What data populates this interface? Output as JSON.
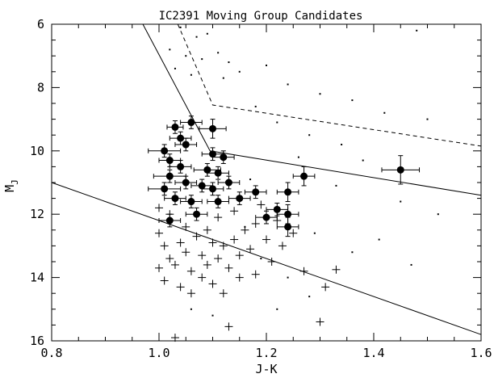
{
  "chart_data": {
    "type": "scatter",
    "title": "IC2391 Moving Group Candidates",
    "xlabel": "J-K",
    "ylabel": "M",
    "ylabel_sub": "J",
    "xlim": [
      0.8,
      1.6
    ],
    "ylim": [
      16,
      6
    ],
    "y_inverted": true,
    "x_ticks": [
      "0.8",
      "1.0",
      "1.2",
      "1.4",
      "1.6"
    ],
    "y_ticks": [
      "6",
      "8",
      "10",
      "12",
      "14",
      "16"
    ],
    "grid": false,
    "legend": "none",
    "series": [
      {
        "marker": "filled-circle-with-errorbars",
        "points": [
          {
            "x": 1.03,
            "y": 9.25,
            "xerr": 0.015,
            "yerr": 0.2
          },
          {
            "x": 1.06,
            "y": 9.1,
            "xerr": 0.02,
            "yerr": 0.2
          },
          {
            "x": 1.1,
            "y": 9.3,
            "xerr": 0.025,
            "yerr": 0.3
          },
          {
            "x": 1.04,
            "y": 9.6,
            "xerr": 0.02,
            "yerr": 0.2
          },
          {
            "x": 1.05,
            "y": 9.8,
            "xerr": 0.02,
            "yerr": 0.2
          },
          {
            "x": 1.01,
            "y": 10.0,
            "xerr": 0.03,
            "yerr": 0.2
          },
          {
            "x": 1.02,
            "y": 10.3,
            "xerr": 0.02,
            "yerr": 0.2
          },
          {
            "x": 1.04,
            "y": 10.5,
            "xerr": 0.02,
            "yerr": 0.2
          },
          {
            "x": 1.1,
            "y": 10.1,
            "xerr": 0.02,
            "yerr": 0.2
          },
          {
            "x": 1.12,
            "y": 10.2,
            "xerr": 0.02,
            "yerr": 0.2
          },
          {
            "x": 1.09,
            "y": 10.6,
            "xerr": 0.025,
            "yerr": 0.2
          },
          {
            "x": 1.11,
            "y": 10.7,
            "xerr": 0.02,
            "yerr": 0.2
          },
          {
            "x": 1.02,
            "y": 10.8,
            "xerr": 0.03,
            "yerr": 0.2
          },
          {
            "x": 1.05,
            "y": 11.0,
            "xerr": 0.02,
            "yerr": 0.2
          },
          {
            "x": 1.08,
            "y": 11.1,
            "xerr": 0.02,
            "yerr": 0.2
          },
          {
            "x": 1.1,
            "y": 11.2,
            "xerr": 0.02,
            "yerr": 0.2
          },
          {
            "x": 1.13,
            "y": 11.0,
            "xerr": 0.02,
            "yerr": 0.2
          },
          {
            "x": 1.18,
            "y": 11.3,
            "xerr": 0.02,
            "yerr": 0.2
          },
          {
            "x": 1.01,
            "y": 11.2,
            "xerr": 0.03,
            "yerr": 0.2
          },
          {
            "x": 1.03,
            "y": 11.5,
            "xerr": 0.02,
            "yerr": 0.2
          },
          {
            "x": 1.06,
            "y": 11.6,
            "xerr": 0.02,
            "yerr": 0.2
          },
          {
            "x": 1.11,
            "y": 11.6,
            "xerr": 0.02,
            "yerr": 0.2
          },
          {
            "x": 1.15,
            "y": 11.5,
            "xerr": 0.02,
            "yerr": 0.2
          },
          {
            "x": 1.2,
            "y": 12.1,
            "xerr": 0.02,
            "yerr": 0.2
          },
          {
            "x": 1.22,
            "y": 11.85,
            "xerr": 0.02,
            "yerr": 0.2
          },
          {
            "x": 1.24,
            "y": 11.3,
            "xerr": 0.02,
            "yerr": 0.3
          },
          {
            "x": 1.24,
            "y": 12.0,
            "xerr": 0.02,
            "yerr": 0.3
          },
          {
            "x": 1.24,
            "y": 12.4,
            "xerr": 0.02,
            "yerr": 0.3
          },
          {
            "x": 1.27,
            "y": 10.8,
            "xerr": 0.02,
            "yerr": 0.3
          },
          {
            "x": 1.45,
            "y": 10.6,
            "xerr": 0.035,
            "yerr": 0.45
          },
          {
            "x": 1.02,
            "y": 12.2,
            "xerr": 0.02,
            "yerr": 0.2
          },
          {
            "x": 1.07,
            "y": 12.0,
            "xerr": 0.02,
            "yerr": 0.2
          }
        ]
      },
      {
        "marker": "plus",
        "points": [
          {
            "x": 1.0,
            "y": 12.6
          },
          {
            "x": 1.01,
            "y": 13.0
          },
          {
            "x": 1.02,
            "y": 13.4
          },
          {
            "x": 1.0,
            "y": 13.7
          },
          {
            "x": 1.01,
            "y": 14.1
          },
          {
            "x": 1.03,
            "y": 13.6
          },
          {
            "x": 1.04,
            "y": 12.9
          },
          {
            "x": 1.04,
            "y": 14.3
          },
          {
            "x": 1.05,
            "y": 13.2
          },
          {
            "x": 1.06,
            "y": 13.8
          },
          {
            "x": 1.06,
            "y": 14.5
          },
          {
            "x": 1.07,
            "y": 12.7
          },
          {
            "x": 1.08,
            "y": 13.3
          },
          {
            "x": 1.08,
            "y": 14.0
          },
          {
            "x": 1.09,
            "y": 13.6
          },
          {
            "x": 1.1,
            "y": 12.9
          },
          {
            "x": 1.1,
            "y": 14.2
          },
          {
            "x": 1.11,
            "y": 13.4
          },
          {
            "x": 1.12,
            "y": 13.0
          },
          {
            "x": 1.12,
            "y": 14.5
          },
          {
            "x": 1.13,
            "y": 13.7
          },
          {
            "x": 1.14,
            "y": 12.8
          },
          {
            "x": 1.15,
            "y": 13.3
          },
          {
            "x": 1.15,
            "y": 14.0
          },
          {
            "x": 1.16,
            "y": 12.5
          },
          {
            "x": 1.17,
            "y": 13.1
          },
          {
            "x": 1.18,
            "y": 12.3
          },
          {
            "x": 1.18,
            "y": 13.9
          },
          {
            "x": 1.2,
            "y": 12.8
          },
          {
            "x": 1.21,
            "y": 13.5
          },
          {
            "x": 1.22,
            "y": 12.2
          },
          {
            "x": 1.23,
            "y": 13.0
          },
          {
            "x": 1.25,
            "y": 12.6
          },
          {
            "x": 1.27,
            "y": 13.8
          },
          {
            "x": 1.05,
            "y": 12.4
          },
          {
            "x": 1.02,
            "y": 12.0
          },
          {
            "x": 1.03,
            "y": 15.9
          },
          {
            "x": 1.13,
            "y": 15.55
          },
          {
            "x": 1.3,
            "y": 15.4
          },
          {
            "x": 1.31,
            "y": 14.3
          },
          {
            "x": 1.33,
            "y": 13.75
          },
          {
            "x": 1.0,
            "y": 11.8
          },
          {
            "x": 1.09,
            "y": 12.5
          },
          {
            "x": 1.11,
            "y": 12.1
          },
          {
            "x": 1.14,
            "y": 11.9
          },
          {
            "x": 1.19,
            "y": 11.7
          }
        ]
      },
      {
        "marker": "small-dot",
        "points": [
          {
            "x": 1.04,
            "y": 6.1
          },
          {
            "x": 1.07,
            "y": 6.4
          },
          {
            "x": 1.09,
            "y": 6.3
          },
          {
            "x": 1.02,
            "y": 6.8
          },
          {
            "x": 1.05,
            "y": 7.0
          },
          {
            "x": 1.08,
            "y": 7.1
          },
          {
            "x": 1.11,
            "y": 6.9
          },
          {
            "x": 1.13,
            "y": 7.2
          },
          {
            "x": 1.03,
            "y": 7.4
          },
          {
            "x": 1.06,
            "y": 7.6
          },
          {
            "x": 1.12,
            "y": 7.7
          },
          {
            "x": 1.15,
            "y": 7.5
          },
          {
            "x": 1.2,
            "y": 7.3
          },
          {
            "x": 1.24,
            "y": 7.9
          },
          {
            "x": 1.3,
            "y": 8.2
          },
          {
            "x": 1.36,
            "y": 8.4
          },
          {
            "x": 1.42,
            "y": 8.8
          },
          {
            "x": 1.5,
            "y": 9.0
          },
          {
            "x": 1.48,
            "y": 6.2
          },
          {
            "x": 1.18,
            "y": 8.6
          },
          {
            "x": 1.22,
            "y": 9.1
          },
          {
            "x": 1.28,
            "y": 9.5
          },
          {
            "x": 1.34,
            "y": 9.8
          },
          {
            "x": 1.38,
            "y": 10.3
          },
          {
            "x": 1.45,
            "y": 11.6
          },
          {
            "x": 1.52,
            "y": 12.0
          },
          {
            "x": 1.41,
            "y": 12.8
          },
          {
            "x": 1.36,
            "y": 13.2
          },
          {
            "x": 1.47,
            "y": 13.6
          },
          {
            "x": 1.29,
            "y": 12.6
          },
          {
            "x": 1.33,
            "y": 11.1
          },
          {
            "x": 1.26,
            "y": 10.2
          },
          {
            "x": 1.17,
            "y": 10.9
          },
          {
            "x": 1.16,
            "y": 12.4
          },
          {
            "x": 1.19,
            "y": 13.4
          },
          {
            "x": 1.24,
            "y": 14.0
          },
          {
            "x": 1.28,
            "y": 14.6
          },
          {
            "x": 1.22,
            "y": 15.0
          },
          {
            "x": 1.1,
            "y": 15.2
          },
          {
            "x": 1.06,
            "y": 15.0
          }
        ]
      }
    ],
    "lines": [
      {
        "style": "solid",
        "points": [
          [
            0.8,
            11.0
          ],
          [
            1.6,
            15.8
          ]
        ]
      },
      {
        "style": "solid",
        "points": [
          [
            0.97,
            6.0
          ],
          [
            1.095,
            10.0
          ],
          [
            1.6,
            11.4
          ]
        ]
      },
      {
        "style": "dashed",
        "points": [
          [
            1.035,
            6.0
          ],
          [
            1.1,
            8.55
          ],
          [
            1.6,
            9.85
          ]
        ]
      }
    ]
  }
}
